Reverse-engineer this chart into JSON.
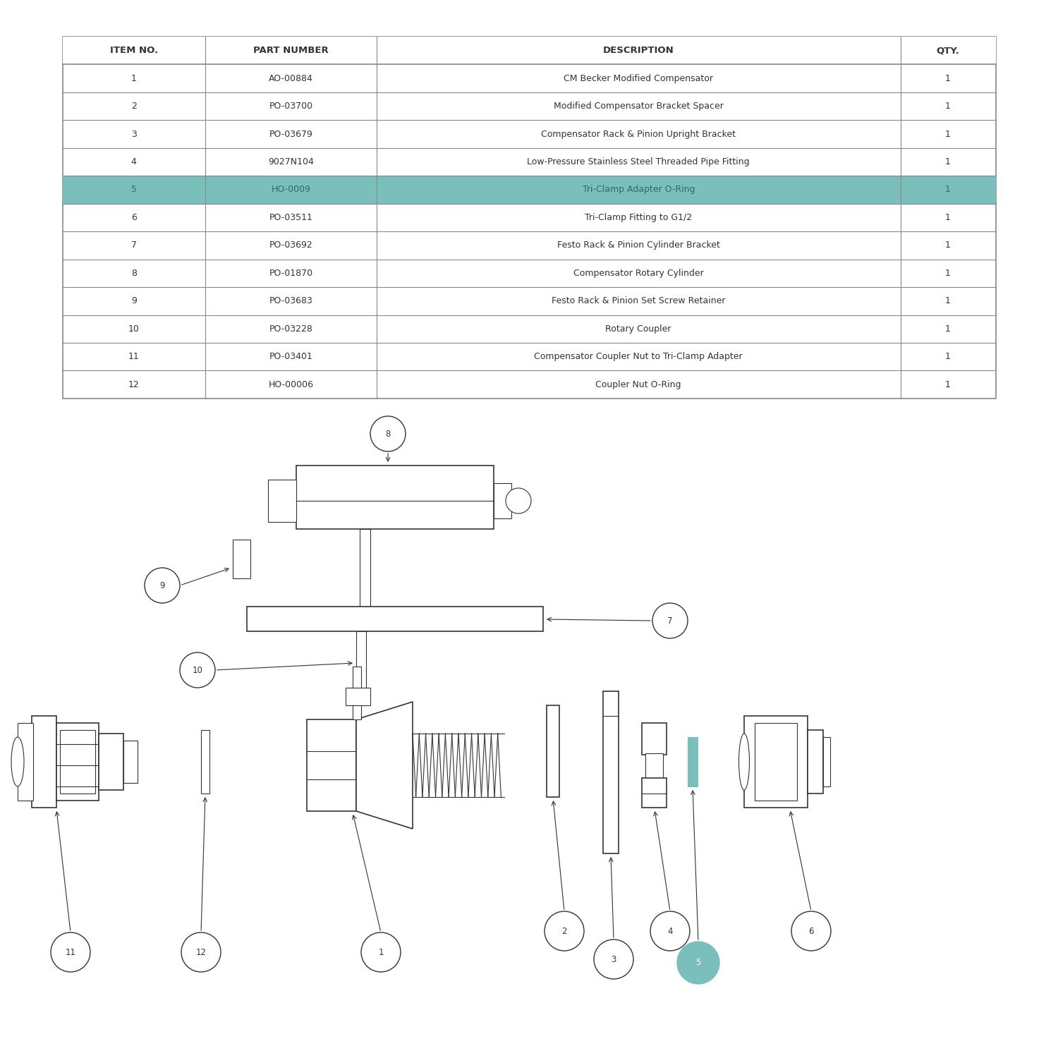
{
  "table_headers": [
    "ITEM NO.",
    "PART NUMBER",
    "DESCRIPTION",
    "QTY."
  ],
  "table_rows": [
    [
      "1",
      "AO-00884",
      "CM Becker Modified Compensator",
      "1"
    ],
    [
      "2",
      "PO-03700",
      "Modified Compensator Bracket Spacer",
      "1"
    ],
    [
      "3",
      "PO-03679",
      "Compensator Rack & Pinion Upright Bracket",
      "1"
    ],
    [
      "4",
      "9027N104",
      "Low-Pressure Stainless Steel Threaded Pipe Fitting",
      "1"
    ],
    [
      "5",
      "HO-0009",
      "Tri-Clamp Adapter O-Ring",
      "1"
    ],
    [
      "6",
      "PO-03511",
      "Tri-Clamp Fitting to G1/2",
      "1"
    ],
    [
      "7",
      "PO-03692",
      "Festo Rack & Pinion Cylinder Bracket",
      "1"
    ],
    [
      "8",
      "PO-01870",
      "Compensator Rotary Cylinder",
      "1"
    ],
    [
      "9",
      "PO-03683",
      "Festo Rack & Pinion Set Screw Retainer",
      "1"
    ],
    [
      "10",
      "PO-03228",
      "Rotary Coupler",
      "1"
    ],
    [
      "11",
      "PO-03401",
      "Compensator Coupler Nut to Tri-Clamp Adapter",
      "1"
    ],
    [
      "12",
      "HO-00006",
      "Coupler Nut O-Ring",
      "1"
    ]
  ],
  "highlight_row": 4,
  "highlight_color": "#7abfbb",
  "highlight_text_color": "#2a6b6b",
  "table_border_color": "#888888",
  "table_text_color": "#333333",
  "background_color": "#ffffff",
  "line_color": "#333333",
  "aqua_color": "#7abfbb"
}
